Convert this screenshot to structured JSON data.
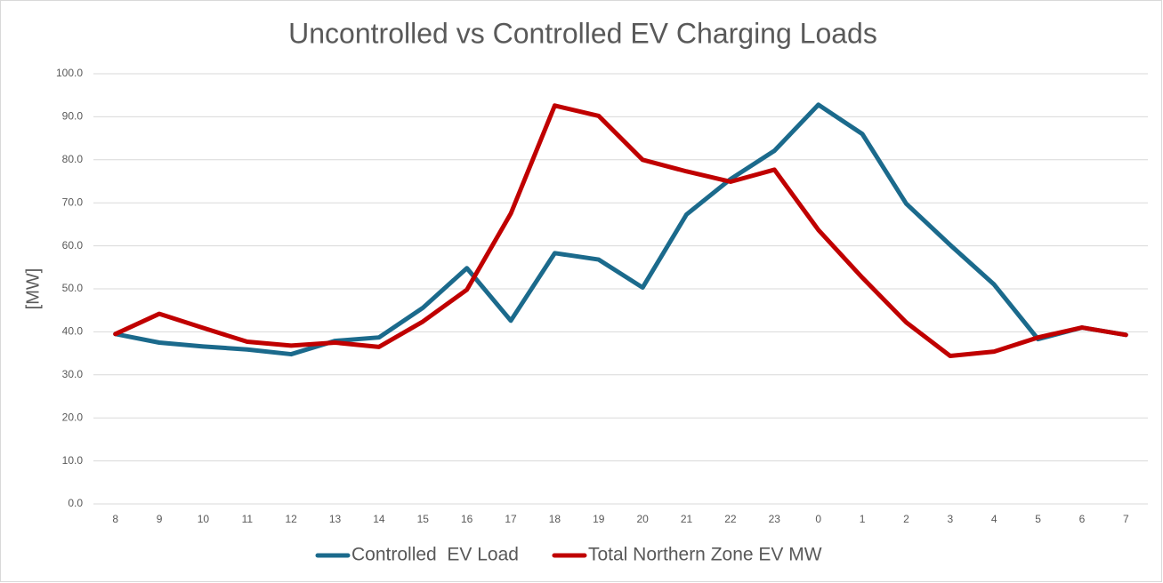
{
  "chart_data": {
    "type": "line",
    "title": "Uncontrolled vs Controlled EV Charging Loads",
    "y_label": "[MW]",
    "categories": [
      "8",
      "9",
      "10",
      "11",
      "12",
      "13",
      "14",
      "15",
      "16",
      "17",
      "18",
      "19",
      "20",
      "21",
      "22",
      "23",
      "0",
      "1",
      "2",
      "3",
      "4",
      "5",
      "6",
      "7"
    ],
    "series": [
      {
        "name": "Controlled  EV Load",
        "color": "#1b6a8c",
        "values": [
          39.5,
          37.5,
          36.6,
          35.9,
          34.8,
          37.9,
          38.7,
          45.6,
          54.8,
          42.6,
          58.3,
          56.8,
          50.3,
          67.3,
          75.5,
          82.1,
          92.8,
          86.0,
          69.8,
          60.2,
          51.0,
          38.3,
          41.0,
          39.3
        ]
      },
      {
        "name": "Total Northern Zone EV MW",
        "color": "#c00000",
        "values": [
          39.5,
          44.2,
          40.9,
          37.7,
          36.8,
          37.5,
          36.5,
          42.4,
          49.8,
          67.5,
          92.6,
          90.2,
          80.0,
          77.3,
          74.9,
          77.7,
          63.7,
          52.6,
          42.2,
          34.4,
          35.4,
          38.7,
          41.0,
          39.3
        ]
      }
    ],
    "ylim": [
      0,
      100
    ],
    "yticks": [
      {
        "value": 0,
        "label": "0.0"
      },
      {
        "value": 10,
        "label": "10.0"
      },
      {
        "value": 20,
        "label": "20.0"
      },
      {
        "value": 30,
        "label": "30.0"
      },
      {
        "value": 40,
        "label": "40.0"
      },
      {
        "value": 50,
        "label": "50.0"
      },
      {
        "value": 60,
        "label": "60.0"
      },
      {
        "value": 70,
        "label": "70.0"
      },
      {
        "value": 80,
        "label": "80.0"
      },
      {
        "value": 90,
        "label": "90.0"
      },
      {
        "value": 100,
        "label": "100.0"
      }
    ],
    "grid": true,
    "legend": "bottom"
  }
}
